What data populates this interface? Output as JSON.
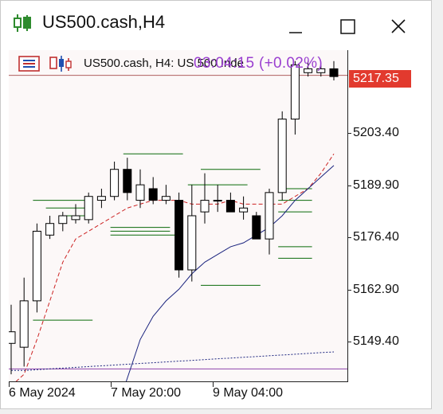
{
  "window": {
    "title": "US500.cash,H4",
    "minimize_glyph": "—",
    "maximize_glyph": "☐",
    "close_glyph": "✕"
  },
  "header": {
    "text": "US500.cash, H4:  US 500 Inde",
    "countdown": "03:04:15 (+0.02%)",
    "icons": [
      "bar-chart-icon",
      "candlestick-icon"
    ]
  },
  "chart_data": {
    "type": "candlestick",
    "symbol": "US500.cash",
    "timeframe": "H4",
    "current_price_label": "5217.35",
    "y_ticks": [
      "5203.40",
      "5189.90",
      "5176.40",
      "5162.90",
      "5149.40"
    ],
    "x_ticks": [
      "6 May 2024",
      "7 May 20:00",
      "9 May 04:00"
    ],
    "ylim": [
      5140,
      5224
    ],
    "candles": [
      {
        "o": 5149,
        "h": 5159,
        "l": 5141,
        "c": 5152
      },
      {
        "o": 5148,
        "h": 5166,
        "l": 5143,
        "c": 5160
      },
      {
        "o": 5160,
        "h": 5180,
        "l": 5157,
        "c": 5178
      },
      {
        "o": 5177,
        "h": 5182,
        "l": 5176,
        "c": 5180
      },
      {
        "o": 5180,
        "h": 5183,
        "l": 5178,
        "c": 5182
      },
      {
        "o": 5181,
        "h": 5185,
        "l": 5180,
        "c": 5182
      },
      {
        "o": 5181,
        "h": 5188,
        "l": 5180,
        "c": 5187
      },
      {
        "o": 5186,
        "h": 5189,
        "l": 5184,
        "c": 5187
      },
      {
        "o": 5187,
        "h": 5196,
        "l": 5186,
        "c": 5194
      },
      {
        "o": 5194,
        "h": 5197,
        "l": 5186,
        "c": 5188
      },
      {
        "o": 5186,
        "h": 5194,
        "l": 5184,
        "c": 5190
      },
      {
        "o": 5189,
        "h": 5192,
        "l": 5185,
        "c": 5186
      },
      {
        "o": 5186,
        "h": 5190,
        "l": 5185,
        "c": 5187
      },
      {
        "o": 5186,
        "h": 5188,
        "l": 5166,
        "c": 5168
      },
      {
        "o": 5168,
        "h": 5190,
        "l": 5165,
        "c": 5182
      },
      {
        "o": 5183,
        "h": 5193,
        "l": 5180,
        "c": 5186
      },
      {
        "o": 5186,
        "h": 5190,
        "l": 5183,
        "c": 5186
      },
      {
        "o": 5186,
        "h": 5188,
        "l": 5183,
        "c": 5183
      },
      {
        "o": 5183,
        "h": 5187,
        "l": 5181,
        "c": 5184
      },
      {
        "o": 5182,
        "h": 5183,
        "l": 5176,
        "c": 5176
      },
      {
        "o": 5176,
        "h": 5189,
        "l": 5172,
        "c": 5188
      },
      {
        "o": 5188,
        "h": 5209,
        "l": 5186,
        "c": 5207
      },
      {
        "o": 5207,
        "h": 5222,
        "l": 5203,
        "c": 5221
      },
      {
        "o": 5219,
        "h": 5222,
        "l": 5218,
        "c": 5220
      },
      {
        "o": 5219,
        "h": 5221,
        "l": 5218,
        "c": 5220
      },
      {
        "o": 5220,
        "h": 5222,
        "l": 5217,
        "c": 5218
      }
    ],
    "moving_averages": [
      {
        "name": "fast",
        "color": "#cc2222",
        "style": "dashed",
        "values": [
          5138,
          5141,
          5150,
          5160,
          5170,
          5176,
          5178,
          5180,
          5182,
          5184,
          5185,
          5186,
          5186,
          5186,
          5185,
          5185,
          5185,
          5186,
          5185,
          5185,
          5185,
          5185,
          5187,
          5189,
          5193,
          5198
        ]
      },
      {
        "name": "slow",
        "color": "#1a237e",
        "style": "solid",
        "values": [
          null,
          null,
          null,
          null,
          null,
          null,
          null,
          null,
          5130,
          5140,
          5150,
          5156,
          5160,
          5163,
          5167,
          5170,
          5172,
          5174,
          5175,
          5177,
          5179,
          5182,
          5186,
          5189,
          5192,
          5195
        ]
      },
      {
        "name": "long",
        "color": "#1a237e",
        "style": "dotted",
        "values": [
          5142,
          5142,
          5142.2,
          5142.4,
          5142.6,
          5142.8,
          5143,
          5143.2,
          5143.4,
          5143.6,
          5143.8,
          5144,
          5144.2,
          5144.4,
          5144.6,
          5144.8,
          5145,
          5145.2,
          5145.4,
          5145.6,
          5145.8,
          5146,
          5146.2,
          5146.4,
          5146.6,
          5146.8
        ]
      }
    ],
    "level_marks": [
      {
        "price": 5186,
        "from": 2,
        "to": 6
      },
      {
        "price": 5184,
        "from": 3,
        "to": 6
      },
      {
        "price": 5182,
        "from": 4,
        "to": 6
      },
      {
        "price": 5179,
        "from": 8,
        "to": 12
      },
      {
        "price": 5178,
        "from": 8,
        "to": 12
      },
      {
        "price": 5177,
        "from": 8,
        "to": 13
      },
      {
        "price": 5198,
        "from": 9,
        "to": 13
      },
      {
        "price": 5194,
        "from": 15,
        "to": 19
      },
      {
        "price": 5190,
        "from": 14,
        "to": 18
      },
      {
        "price": 5164,
        "from": 15,
        "to": 19
      },
      {
        "price": 5189,
        "from": 21,
        "to": 23
      },
      {
        "price": 5186,
        "from": 21,
        "to": 23
      },
      {
        "price": 5183,
        "from": 21,
        "to": 23
      },
      {
        "price": 5174,
        "from": 21,
        "to": 23
      },
      {
        "price": 5171,
        "from": 21,
        "to": 23
      },
      {
        "price": 5155,
        "from": 2,
        "to": 6
      }
    ],
    "horizontal_lines": [
      {
        "price": 5142.4,
        "color": "#8e44ad"
      },
      {
        "price": 5218.3,
        "color": "#b06060"
      }
    ],
    "grid": false,
    "colors": {
      "bull": "#ffffff",
      "bear": "#000000",
      "outline": "#000000",
      "level": "#0a6b0a",
      "pricetag": "#e23a2e",
      "countdown": "#9a3fd0"
    }
  }
}
